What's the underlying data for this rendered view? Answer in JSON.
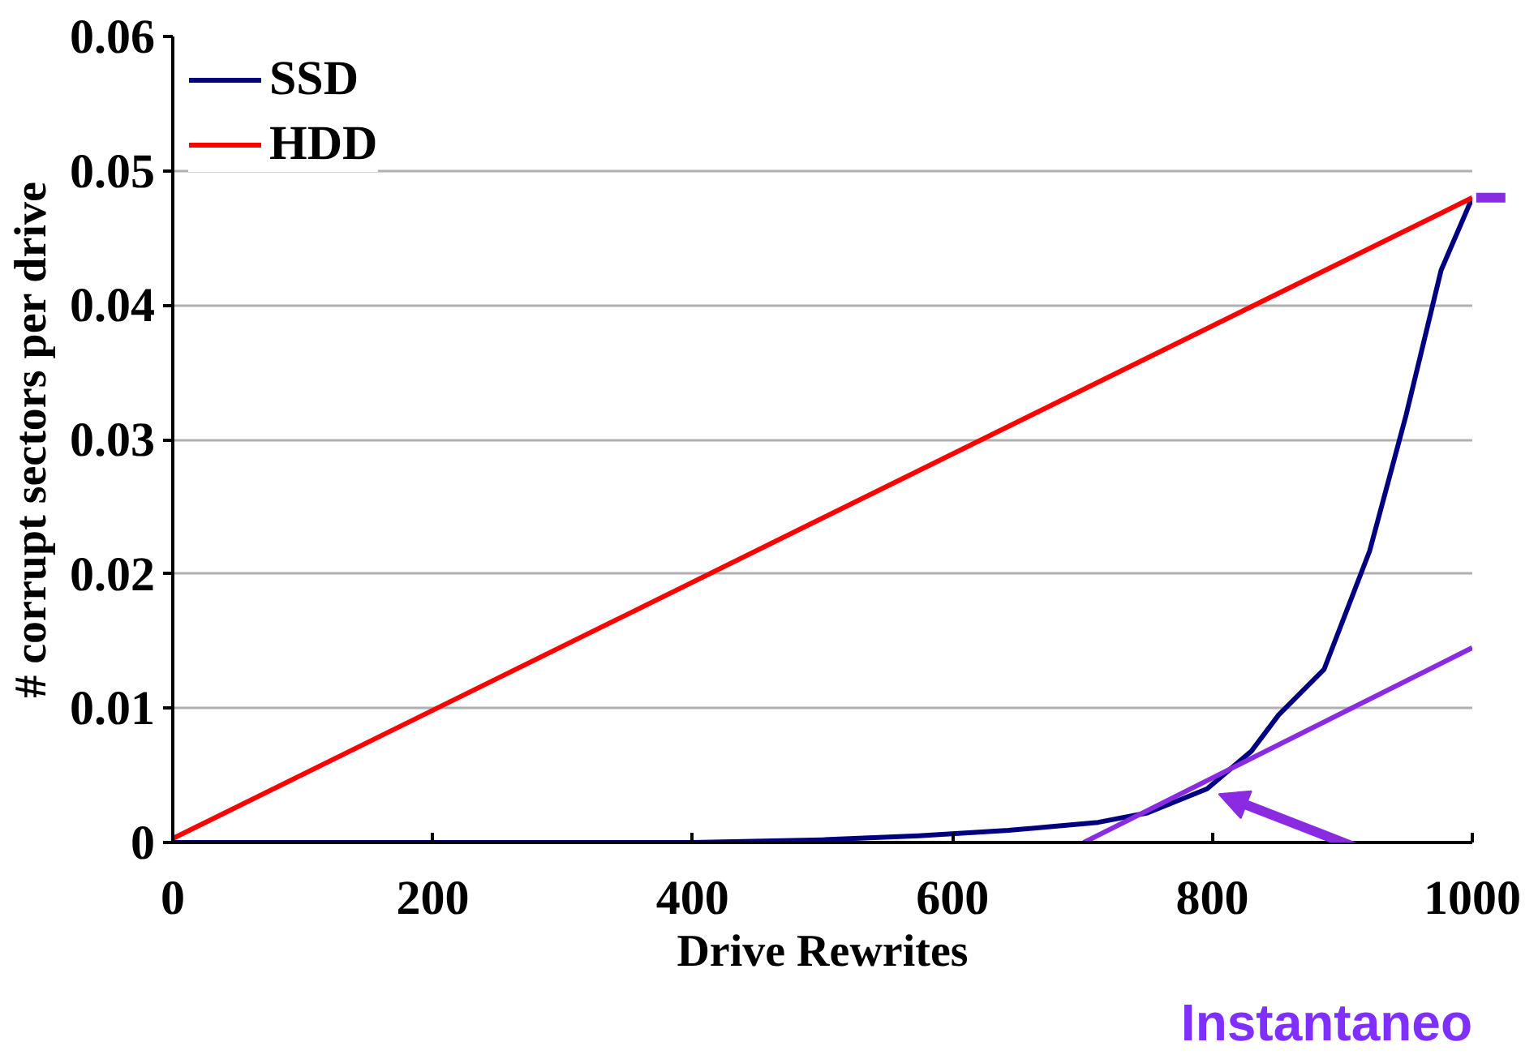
{
  "chart_data": {
    "type": "line",
    "xlabel": "Drive Rewrites",
    "ylabel": "# corrupt sectors per drive",
    "xlim": [
      0,
      1000
    ],
    "ylim": [
      0,
      0.06
    ],
    "xticks": [
      0,
      200,
      400,
      600,
      800,
      1000
    ],
    "yticks": [
      0,
      0.01,
      0.02,
      0.03,
      0.04,
      0.05,
      0.06
    ],
    "grid": "y",
    "legend": "top left",
    "series": [
      {
        "name": "SSD",
        "color": "#000080",
        "x": [
          0,
          100,
          200,
          300,
          400,
          500,
          574,
          643,
          712,
          750,
          796,
          830,
          851,
          886,
          921,
          949,
          976,
          1000
        ],
        "values": [
          0,
          0,
          0,
          0,
          0,
          0.0002,
          0.0005,
          0.0009,
          0.0015,
          0.0022,
          0.004,
          0.0068,
          0.0095,
          0.0129,
          0.0217,
          0.0318,
          0.0426,
          0.048
        ]
      },
      {
        "name": "HDD",
        "color": "#ff0000",
        "x": [
          0,
          1000
        ],
        "values": [
          0.0003,
          0.048
        ]
      },
      {
        "color": "#8a2be2",
        "x": [
          701,
          1000
        ],
        "values": [
          0,
          0.0145
        ]
      }
    ],
    "annotations": [
      "Instantaneo"
    ]
  }
}
